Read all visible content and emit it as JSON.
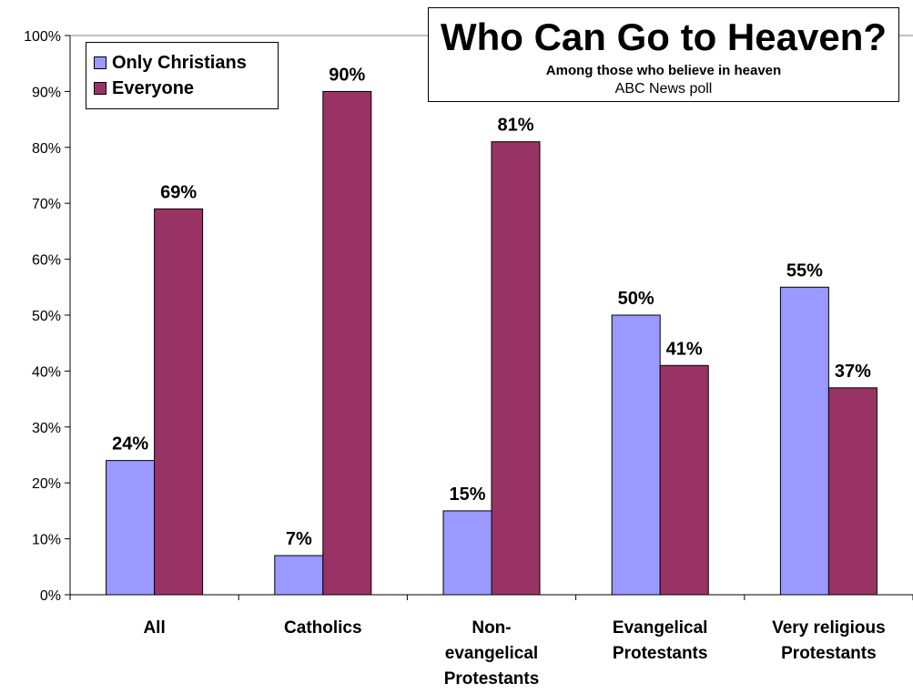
{
  "chart_data": {
    "type": "bar",
    "title": "Who Can Go to Heaven?",
    "subtitle": "Among those who believe in heaven",
    "source": "ABC News poll",
    "categories": [
      "All",
      "Catholics",
      "Non-evangelical Protestants",
      "Evangelical Protestants",
      "Very religious Protestants"
    ],
    "series": [
      {
        "name": "Only Christians",
        "color": "#9999ff",
        "values": [
          24,
          7,
          15,
          50,
          55
        ]
      },
      {
        "name": "Everyone",
        "color": "#993366",
        "values": [
          69,
          90,
          81,
          41,
          37
        ]
      }
    ],
    "ylim": [
      0,
      100
    ],
    "yticks": [
      "0%",
      "10%",
      "20%",
      "30%",
      "40%",
      "50%",
      "60%",
      "70%",
      "80%",
      "90%",
      "100%"
    ],
    "value_suffix": "%",
    "grid": false,
    "legend_position": "top-left"
  }
}
